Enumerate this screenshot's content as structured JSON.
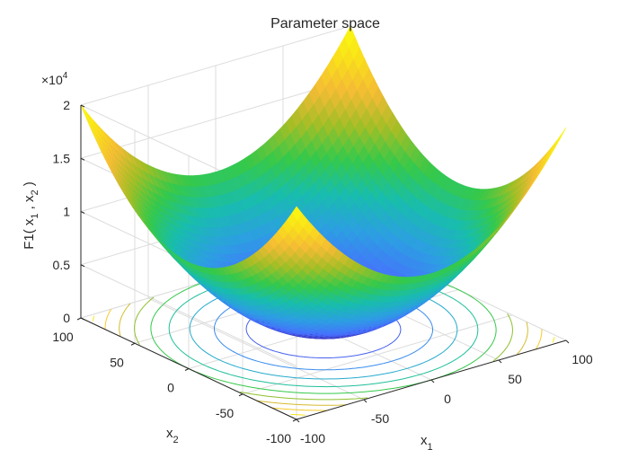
{
  "chart_data": {
    "type": "surface",
    "title": "Parameter space",
    "xlabel": "x",
    "xlabel_sub": "1",
    "ylabel": "x",
    "ylabel_sub": "2",
    "zlabel_prefix": "F1( x",
    "zlabel_sub1": "1",
    "zlabel_mid": " , x",
    "zlabel_sub2": "2",
    "zlabel_suffix": " )",
    "function": "x1^2 + x2^2",
    "x_range": [
      -100,
      100
    ],
    "y_range": [
      -100,
      100
    ],
    "z_range": [
      0,
      20000
    ],
    "x_ticks": [
      "-100",
      "-50",
      "0",
      "50",
      "100"
    ],
    "y_ticks": [
      "-100",
      "-50",
      "0",
      "50",
      "100"
    ],
    "z_ticks": [
      "0",
      "0.5",
      "1",
      "1.5",
      "2"
    ],
    "z_exponent_base": "×10",
    "z_exponent_power": "4",
    "contour_levels": [
      2000,
      4000,
      6000,
      8000,
      10000,
      12000,
      14000,
      16000,
      18000,
      20000
    ],
    "colormap": [
      "#3e26a8",
      "#4770fe",
      "#2d9ee3",
      "#18bdad",
      "#35c94a",
      "#a4be26",
      "#f4bb35",
      "#f9e01b",
      "#f9fb0e"
    ],
    "grid": true
  }
}
